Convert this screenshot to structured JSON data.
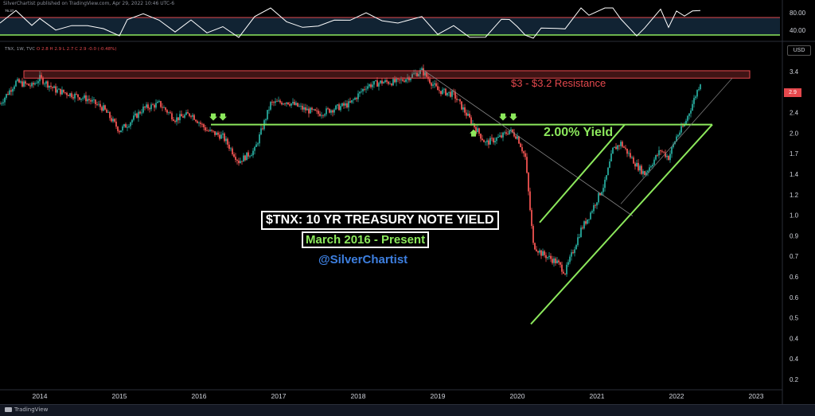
{
  "publisher": "SilverChartist published on TradingView.com, Apr 29, 2022 10:46 UTC-6",
  "legend": {
    "prefix": "TNX, 1W, TVC",
    "ohlc": "O 2.8  H 2.9  L 2.7  C 2.9  -0.0 (-0.48%)"
  },
  "rsi_value": "76.37",
  "currency_button": "USD",
  "last_price": "2.9",
  "footer": {
    "brand": "TradingView"
  },
  "annotations": {
    "title_line1": "$TNX: 10 YR TREASURY NOTE YIELD",
    "title_line2": "March 2016 - Present",
    "handle": "@SilverChartist",
    "resistance": "$3 - $3.2 Resistance",
    "yield_line": "2.00% Yield"
  },
  "colors": {
    "background": "#000000",
    "up_candle": "#26a69a",
    "down_candle": "#ef5350",
    "annotation_green": "#8ce85c",
    "resistance_red": "#e5484d",
    "rsi_line": "#ffffff",
    "handle_blue": "#3d7fe0"
  },
  "chart_data": {
    "type": "line",
    "subtype": "candlestick",
    "title": "",
    "xlabel": "",
    "ylabel": "",
    "x_tick_labels": [
      "2014",
      "2015",
      "2016",
      "2017",
      "2018",
      "2019",
      "2020",
      "2021",
      "2022",
      "2023"
    ],
    "y_tick_labels": [
      "0.2",
      "0.4",
      "0.4",
      "0.5",
      "0.6",
      "0.6",
      "0.7",
      "0.9",
      "1.0",
      "1.2",
      "1.4",
      "1.7",
      "2.0",
      "2.4",
      "2.8",
      "3.4"
    ],
    "y_scale": "log",
    "xlim": [
      2013.5,
      2023.3
    ],
    "ylim": [
      0.2,
      3.6
    ],
    "series": [
      {
        "x": [
          2013.5,
          2013.7,
          2013.9,
          2014.0,
          2014.2,
          2014.4,
          2014.6,
          2014.8,
          2015.0,
          2015.1,
          2015.3,
          2015.5,
          2015.7,
          2015.9,
          2016.1,
          2016.3,
          2016.5,
          2016.7,
          2016.9,
          2017.1,
          2017.3,
          2017.5,
          2017.7,
          2017.9,
          2018.1,
          2018.3,
          2018.5,
          2018.8,
          2019.0,
          2019.2,
          2019.4,
          2019.6,
          2019.8,
          2019.9,
          2020.0,
          2020.1,
          2020.2,
          2020.3,
          2020.5,
          2020.6,
          2020.8,
          2020.9,
          2021.1,
          2021.2,
          2021.3,
          2021.5,
          2021.6,
          2021.8,
          2021.9,
          2022.0,
          2022.1,
          2022.2,
          2022.3
        ],
        "values": [
          2.4,
          2.9,
          2.8,
          3.0,
          2.7,
          2.6,
          2.5,
          2.3,
          1.9,
          2.0,
          2.3,
          2.4,
          2.1,
          2.2,
          1.9,
          1.8,
          1.45,
          1.6,
          2.4,
          2.45,
          2.3,
          2.2,
          2.3,
          2.4,
          2.8,
          2.9,
          2.9,
          3.2,
          2.7,
          2.6,
          2.1,
          1.7,
          1.8,
          1.9,
          1.8,
          1.5,
          0.7,
          0.65,
          0.6,
          0.55,
          0.8,
          0.9,
          1.2,
          1.6,
          1.7,
          1.4,
          1.3,
          1.6,
          1.5,
          1.8,
          2.0,
          2.4,
          2.9
        ]
      }
    ],
    "rsi": {
      "levels": [
        "80.00",
        "40.00"
      ]
    },
    "annotations": {
      "resistance_zone": [
        3.0,
        3.2
      ],
      "horizontal_yield": 2.0,
      "channel_lower": {
        "from": [
          2020.17,
          0.35
        ],
        "to": [
          2022.45,
          2.0
        ]
      },
      "channel_upper": {
        "from": [
          2020.28,
          0.85
        ],
        "to": [
          2021.35,
          2.0
        ]
      },
      "downtrend": {
        "from": [
          2018.8,
          3.25
        ],
        "to": [
          2021.45,
          0.9
        ]
      }
    }
  }
}
